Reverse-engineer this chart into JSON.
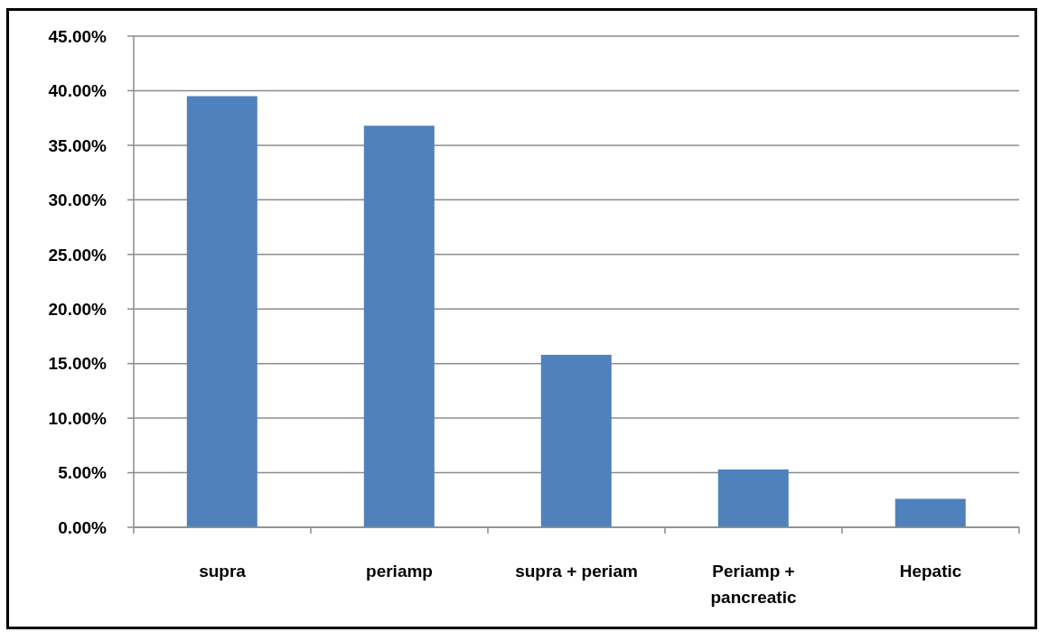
{
  "chart_data": {
    "type": "bar",
    "categories": [
      "supra",
      "periamp",
      "supra + periam",
      "Periamp + pancreatic",
      "Hepatic"
    ],
    "values": [
      39.5,
      36.8,
      15.8,
      5.3,
      2.6
    ],
    "color": "#4f81bd",
    "ylim": [
      0,
      45
    ],
    "yticks": [
      {
        "value": 0,
        "label": "0.00%"
      },
      {
        "value": 5,
        "label": "5.00%"
      },
      {
        "value": 10,
        "label": "10.00%"
      },
      {
        "value": 15,
        "label": "15.00%"
      },
      {
        "value": 20,
        "label": "20.00%"
      },
      {
        "value": 25,
        "label": "25.00%"
      },
      {
        "value": 30,
        "label": "30.00%"
      },
      {
        "value": 35,
        "label": "35.00%"
      },
      {
        "value": 40,
        "label": "40.00%"
      },
      {
        "value": 45,
        "label": "45.00%"
      }
    ],
    "grid": "y"
  }
}
